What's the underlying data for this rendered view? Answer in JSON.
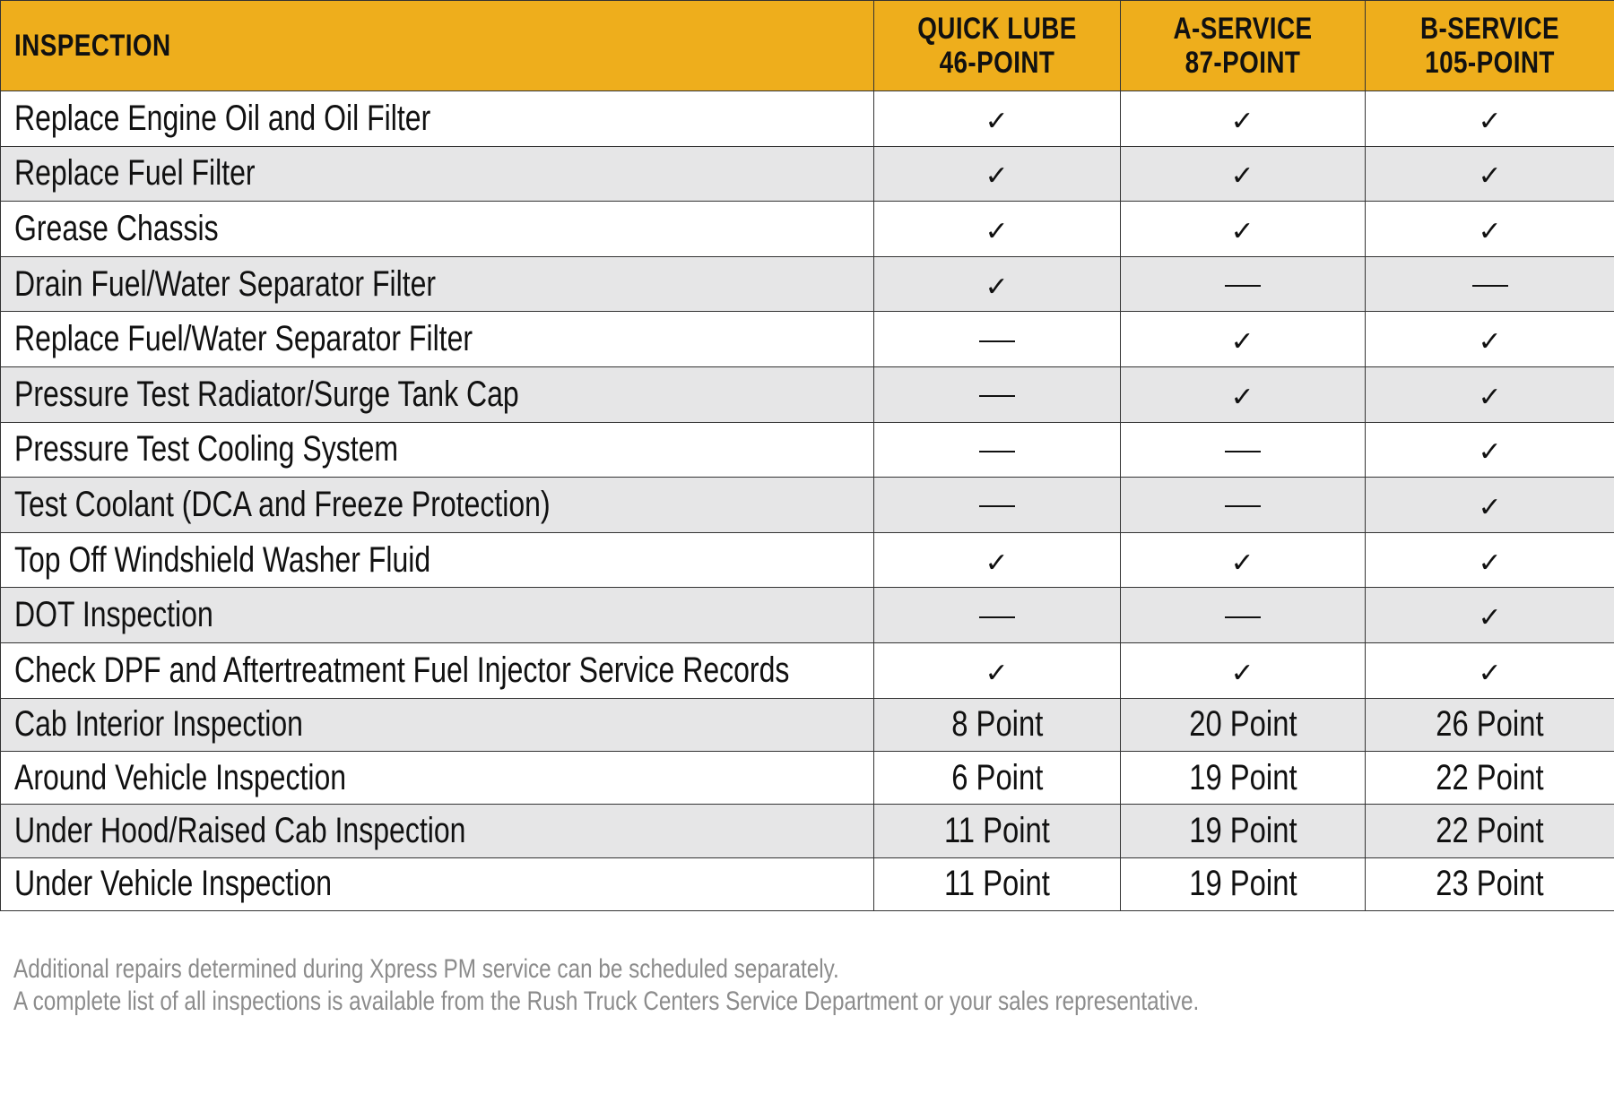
{
  "header": {
    "inspection_label": "INSPECTION",
    "plans": [
      {
        "line1": "QUICK LUBE",
        "line2": "46-POINT"
      },
      {
        "line1": "A-SERVICE",
        "line2": "87-POINT"
      },
      {
        "line1": "B-SERVICE",
        "line2": "105-POINT"
      }
    ]
  },
  "colors": {
    "header_bg": "#eeae1c",
    "shaded_row": "#e6e6e7",
    "border": "#333333",
    "note_text": "#8c8c8c"
  },
  "marks": {
    "included": "✓",
    "not_included": "—"
  },
  "rows": [
    {
      "label": "Replace Engine Oil and Oil Filter",
      "values": [
        "✓",
        "✓",
        "✓"
      ]
    },
    {
      "label": "Replace Fuel Filter",
      "values": [
        "✓",
        "✓",
        "✓"
      ]
    },
    {
      "label": "Grease Chassis",
      "values": [
        "✓",
        "✓",
        "✓"
      ]
    },
    {
      "label": "Drain Fuel/Water Separator Filter",
      "values": [
        "✓",
        "—",
        "—"
      ]
    },
    {
      "label": "Replace Fuel/Water Separator Filter",
      "values": [
        "—",
        "✓",
        "✓"
      ]
    },
    {
      "label": "Pressure Test Radiator/Surge Tank Cap",
      "values": [
        "—",
        "✓",
        "✓"
      ]
    },
    {
      "label": "Pressure Test Cooling System",
      "values": [
        "—",
        "—",
        "✓"
      ]
    },
    {
      "label": "Test Coolant (DCA and Freeze Protection)",
      "values": [
        "—",
        "—",
        "✓"
      ]
    },
    {
      "label": "Top Off Windshield Washer Fluid",
      "values": [
        "✓",
        "✓",
        "✓"
      ]
    },
    {
      "label": "DOT Inspection",
      "values": [
        "—",
        "—",
        "✓"
      ]
    },
    {
      "label": "Check DPF and Aftertreatment Fuel Injector Service Records",
      "values": [
        "✓",
        "✓",
        "✓"
      ]
    },
    {
      "label": "Cab Interior Inspection",
      "values": [
        "8 Point",
        "20 Point",
        "26 Point"
      ]
    },
    {
      "label": "Around Vehicle Inspection",
      "values": [
        "6 Point",
        "19 Point",
        "22 Point"
      ]
    },
    {
      "label": "Under Hood/Raised Cab Inspection",
      "values": [
        "11 Point",
        "19 Point",
        "22 Point"
      ]
    },
    {
      "label": "Under Vehicle Inspection",
      "values": [
        "11 Point",
        "19 Point",
        "23 Point"
      ]
    }
  ],
  "notes": {
    "line1": "Additional repairs determined during Xpress PM service can be scheduled separately.",
    "line2": "A complete list of all inspections is available from the Rush Truck Centers Service Department or your sales representative."
  }
}
